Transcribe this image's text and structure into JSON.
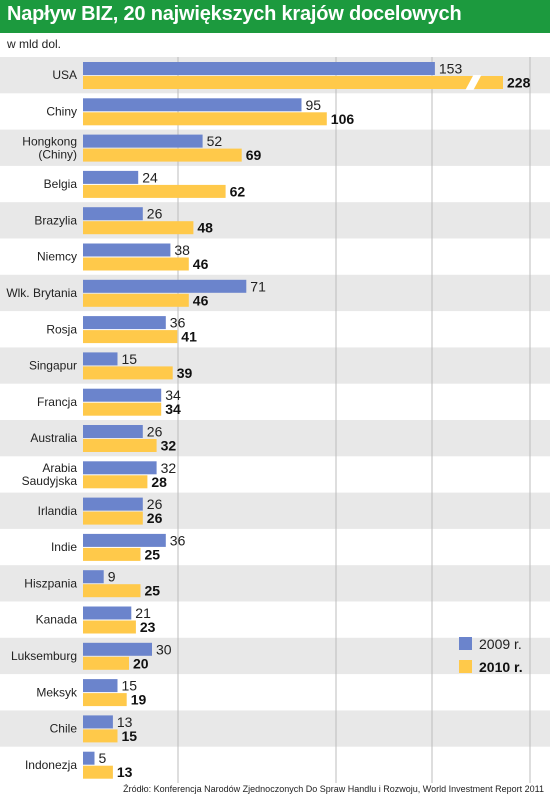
{
  "header": {
    "title": "Napływ BIZ, 20 największych krajów docelowych"
  },
  "unit_label": "w mld dol.",
  "source": "Źródło: Konferencja Narodów Zjednoczonych Do Spraw Handlu i Rozwoju, World Investment Report 2011",
  "colors": {
    "series_2009": "#6b84cc",
    "series_2010": "#ffc94a",
    "header": "#1c9a3e",
    "stripe": "#e8e8e8",
    "grid": "#bdbdbd"
  },
  "chart_data": {
    "type": "bar",
    "orientation": "horizontal",
    "title": "Napływ BIZ, 20 największych krajów docelowych",
    "unit": "w mld dol.",
    "categories": [
      [
        "USA"
      ],
      [
        "Chiny"
      ],
      [
        "Hongkong",
        "(Chiny)"
      ],
      [
        "Belgia"
      ],
      [
        "Brazylia"
      ],
      [
        "Niemcy"
      ],
      [
        "Wlk. Brytania"
      ],
      [
        "Rosja"
      ],
      [
        "Singapur"
      ],
      [
        "Francja"
      ],
      [
        "Australia"
      ],
      [
        "Arabia",
        "Saudyjska"
      ],
      [
        "Irlandia"
      ],
      [
        "Indie"
      ],
      [
        "Hiszpania"
      ],
      [
        "Kanada"
      ],
      [
        "Luksemburg"
      ],
      [
        "Meksyk"
      ],
      [
        "Chile"
      ],
      [
        "Indonezja"
      ]
    ],
    "series": [
      {
        "name": "2009 r.",
        "values": [
          153,
          95,
          52,
          24,
          26,
          38,
          71,
          36,
          15,
          34,
          26,
          32,
          26,
          36,
          9,
          21,
          30,
          15,
          13,
          5
        ]
      },
      {
        "name": "2010 r.",
        "values": [
          228,
          106,
          69,
          62,
          48,
          46,
          46,
          41,
          39,
          34,
          32,
          28,
          26,
          25,
          25,
          23,
          20,
          19,
          15,
          13
        ]
      }
    ],
    "axis_break": {
      "series": 1,
      "category": 0
    },
    "legend_position": "bottom-right"
  }
}
